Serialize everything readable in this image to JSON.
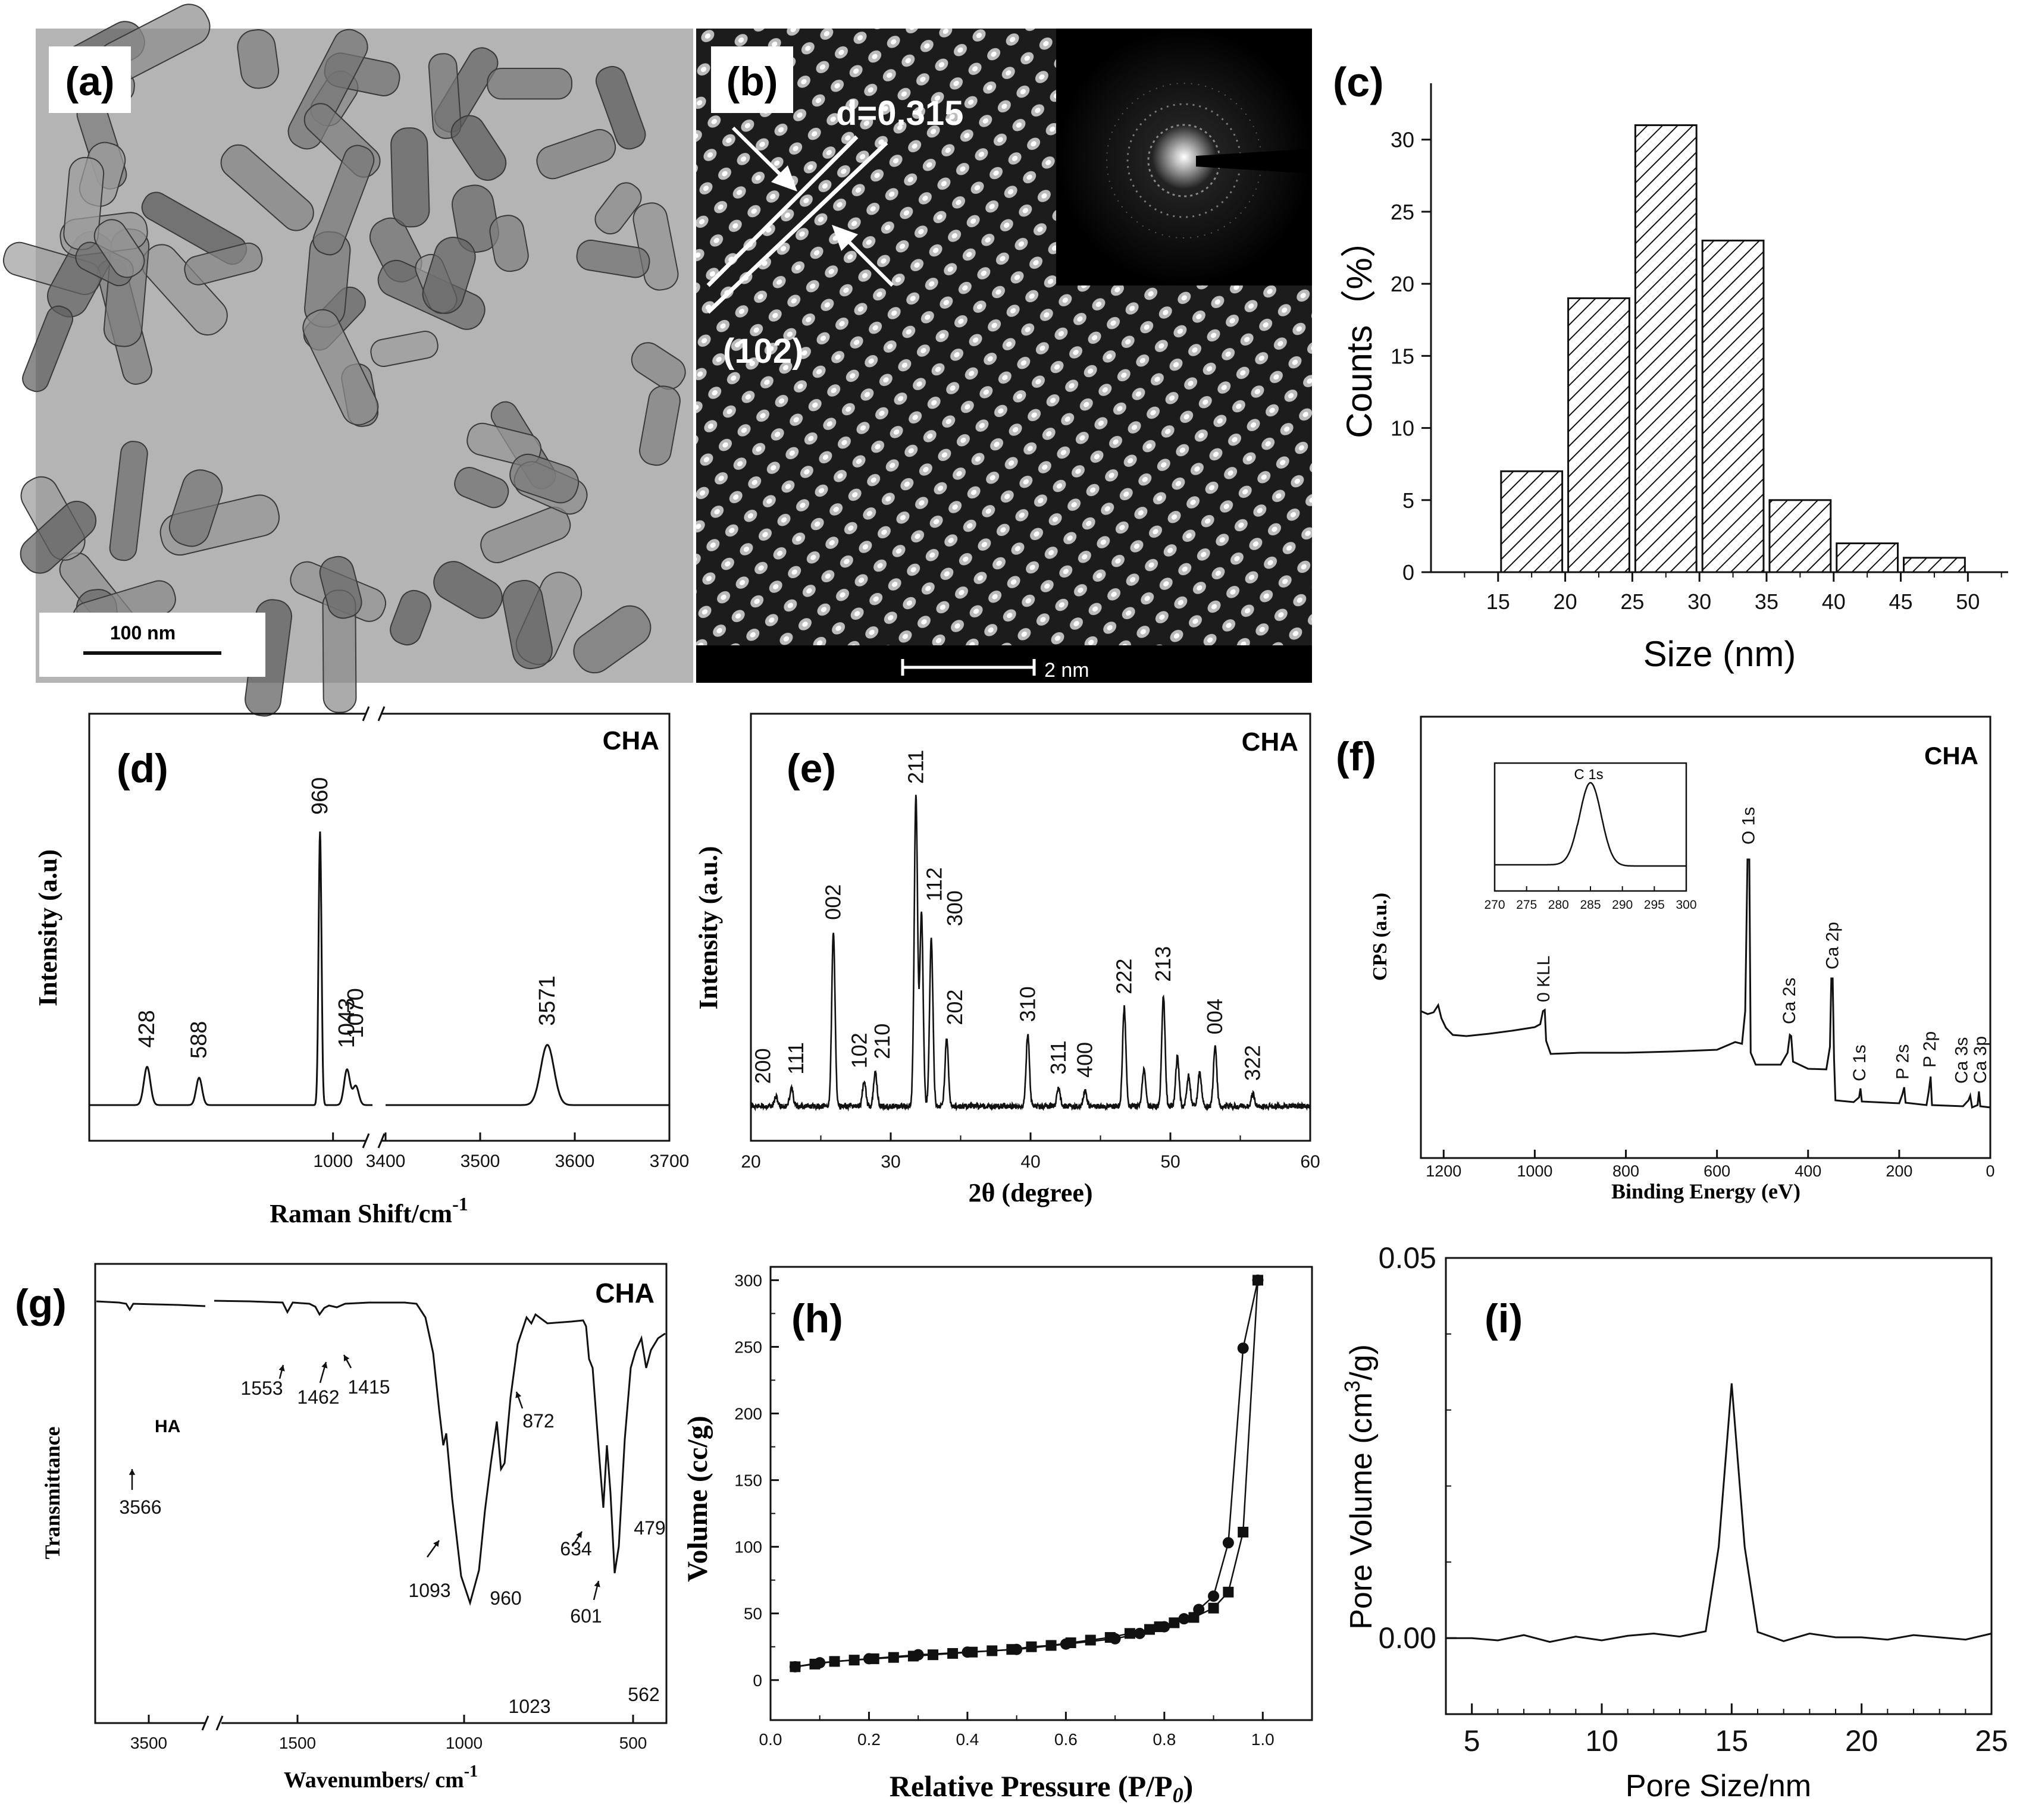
{
  "colors": {
    "ink": "#111111",
    "tem_background": "#b4b4b4",
    "hrtem_background": "#1e1e1e",
    "white": "#ffffff"
  },
  "panel_labels": [
    "(a)",
    "(b)",
    "(c)",
    "(d)",
    "(e)",
    "(f)",
    "(g)",
    "(h)",
    "(i)"
  ],
  "sample_label": "CHA",
  "panel_a": {
    "label": "(a)",
    "scale_bar": "100 nm"
  },
  "panel_b": {
    "label": "(b)",
    "spacing": "d=0.315",
    "plane": "(102)",
    "scale_bar": "2 nm"
  },
  "chart_data": [
    {
      "panel": "c",
      "type": "bar",
      "style": "hatched histogram",
      "bins": [
        [
          15,
          20
        ],
        [
          20,
          25
        ],
        [
          25,
          30
        ],
        [
          30,
          35
        ],
        [
          35,
          40
        ],
        [
          40,
          45
        ],
        [
          45,
          50
        ]
      ],
      "values": [
        7,
        19,
        31,
        23,
        5,
        2,
        1
      ],
      "xlabel": "Size (nm)",
      "ylabel": "Counts（%）",
      "xticks": [
        "15",
        "20",
        "25",
        "30",
        "35",
        "40",
        "45",
        "50"
      ],
      "yticks": [
        "0",
        "5",
        "10",
        "15",
        "20",
        "25",
        "30"
      ],
      "xlim": [
        10,
        53
      ],
      "ylim": [
        0,
        33
      ]
    },
    {
      "panel": "d",
      "type": "line",
      "title": "CHA",
      "xlabel": "Raman Shift/cm",
      "xlabel_superscript": "-1",
      "ylabel": "Intensity (a.u)",
      "broken_axis": true,
      "segments": [
        {
          "xlim": [
            700,
            1125
          ]
        },
        {
          "xlim": [
            3400,
            3700
          ]
        }
      ],
      "xticks": [
        "1000",
        "3400",
        "3500",
        "3600",
        "3700"
      ],
      "peaks": [
        {
          "x": 428,
          "rel": 0.14
        },
        {
          "x": 588,
          "rel": 0.1
        },
        {
          "x": 960,
          "rel": 1.0
        },
        {
          "x": 1043,
          "rel": 0.13
        },
        {
          "x": 1070,
          "rel": 0.07
        },
        {
          "x": 3571,
          "rel": 0.22
        }
      ],
      "peak_labels": [
        "428",
        "588",
        "960",
        "1043",
        "1070",
        "3571"
      ]
    },
    {
      "panel": "e",
      "type": "line",
      "title": "CHA",
      "xlabel": "2θ (degree)",
      "ylabel": "Intensity (a.u.)",
      "xlim": [
        20,
        60
      ],
      "xticks": [
        "20",
        "30",
        "40",
        "50",
        "60"
      ],
      "peaks": [
        {
          "x": 21.8,
          "rel": 0.03,
          "label": "200"
        },
        {
          "x": 22.9,
          "rel": 0.06,
          "label": "111"
        },
        {
          "x": 25.9,
          "rel": 0.56,
          "label": "002"
        },
        {
          "x": 28.1,
          "rel": 0.08,
          "label": "102"
        },
        {
          "x": 28.9,
          "rel": 0.11,
          "label": "210"
        },
        {
          "x": 31.8,
          "rel": 1.0,
          "label": "211"
        },
        {
          "x": 32.2,
          "rel": 0.62,
          "label": "112"
        },
        {
          "x": 32.9,
          "rel": 0.54,
          "label": "300"
        },
        {
          "x": 34.0,
          "rel": 0.22,
          "label": "202"
        },
        {
          "x": 39.8,
          "rel": 0.23,
          "label": "310"
        },
        {
          "x": 42.0,
          "rel": 0.06,
          "label": "311"
        },
        {
          "x": 43.9,
          "rel": 0.05,
          "label": "400"
        },
        {
          "x": 46.7,
          "rel": 0.32,
          "label": "222"
        },
        {
          "x": 48.1,
          "rel": 0.12
        },
        {
          "x": 49.5,
          "rel": 0.36,
          "label": "213"
        },
        {
          "x": 50.5,
          "rel": 0.16
        },
        {
          "x": 51.3,
          "rel": 0.1
        },
        {
          "x": 52.1,
          "rel": 0.11
        },
        {
          "x": 53.2,
          "rel": 0.19,
          "label": "004"
        },
        {
          "x": 55.9,
          "rel": 0.04,
          "label": "322"
        }
      ]
    },
    {
      "panel": "f",
      "type": "line",
      "title": "CHA",
      "xlabel": "Binding Energy (eV)",
      "ylabel": "CPS (a.u.)",
      "xlim": [
        1250,
        0
      ],
      "xticks": [
        "1200",
        "1000",
        "800",
        "600",
        "400",
        "200",
        "0"
      ],
      "peak_labels": [
        {
          "x": 978,
          "label": "0 KLL"
        },
        {
          "x": 531,
          "label": "O 1s"
        },
        {
          "x": 439,
          "label": "Ca 2s"
        },
        {
          "x": 347,
          "label": "Ca 2p"
        },
        {
          "x": 285,
          "label": "C 1s"
        },
        {
          "x": 190,
          "label": "P 2s"
        },
        {
          "x": 133,
          "label": "P 2p"
        },
        {
          "x": 45,
          "label": "Ca 3s"
        },
        {
          "x": 25,
          "label": "Ca 3p"
        }
      ],
      "inset": {
        "title": "C 1s",
        "xlim": [
          270,
          300
        ],
        "xticks": [
          "270",
          "275",
          "280",
          "285",
          "290",
          "295",
          "300"
        ],
        "peak": 285
      }
    },
    {
      "panel": "g",
      "type": "line",
      "title": "CHA",
      "xlabel": "Wavenumbers/ cm",
      "xlabel_superscript": "-1",
      "ylabel": "Transmittance",
      "broken_axis": true,
      "xticks": [
        "3500",
        "1500",
        "1000",
        "500"
      ],
      "series_label": "HA",
      "annotations": [
        "3566",
        "1553",
        "1462",
        "1415",
        "872",
        "1093",
        "960",
        "634",
        "601",
        "479",
        "1023",
        "562"
      ]
    },
    {
      "panel": "h",
      "type": "line",
      "xlabel": "Relative Pressure (P/P",
      "xlabel_sub": "0",
      "ylabel": "Volume (cc/g)",
      "xlim": [
        0,
        1.1
      ],
      "ylim": [
        -30,
        310
      ],
      "xticks": [
        "0.0",
        "0.2",
        "0.4",
        "0.6",
        "0.8",
        "1.0"
      ],
      "yticks": [
        "0",
        "50",
        "100",
        "150",
        "200",
        "250",
        "300"
      ],
      "series": [
        {
          "name": "",
          "marker": "square",
          "x": [
            0.05,
            0.09,
            0.13,
            0.17,
            0.21,
            0.25,
            0.29,
            0.33,
            0.37,
            0.41,
            0.45,
            0.49,
            0.53,
            0.57,
            0.61,
            0.65,
            0.69,
            0.73,
            0.77,
            0.79,
            0.82,
            0.86,
            0.9,
            0.93,
            0.96,
            0.99
          ],
          "y": [
            10,
            12,
            14,
            15,
            16,
            17,
            18,
            19,
            20,
            21,
            22,
            23,
            25,
            26,
            28,
            30,
            32,
            35,
            38,
            40,
            43,
            47,
            54,
            66,
            111,
            300
          ]
        },
        {
          "name": "",
          "marker": "circle",
          "x": [
            0.99,
            0.96,
            0.93,
            0.9,
            0.87,
            0.84,
            0.8,
            0.75,
            0.7,
            0.6,
            0.5,
            0.4,
            0.3,
            0.2,
            0.1,
            0.05
          ],
          "y": [
            300,
            249,
            103,
            63,
            53,
            46,
            40,
            35,
            31,
            27,
            23,
            21,
            19,
            16,
            13,
            10
          ]
        }
      ]
    },
    {
      "panel": "i",
      "type": "line",
      "xlabel": "Pore Size/nm",
      "ylabel": "Pore Volume (cm",
      "ylabel_sup": "3",
      "ylabel_end": "/g)",
      "xlim": [
        4,
        25
      ],
      "ylim": [
        -0.01,
        0.05
      ],
      "xticks": [
        "5",
        "10",
        "15",
        "20",
        "25"
      ],
      "yticks": [
        "0.00",
        "0.05"
      ],
      "series": [
        {
          "name": "",
          "x": [
            4,
            5,
            6,
            7,
            8,
            9,
            10,
            11,
            12,
            13,
            14,
            14.5,
            15,
            15.5,
            16,
            17,
            18,
            19,
            20,
            21,
            22,
            23,
            24,
            25
          ],
          "y": [
            0,
            0,
            -0.0003,
            0.0004,
            -0.0005,
            0.0002,
            -0.0003,
            0.0003,
            0.0006,
            0.0002,
            0.0009,
            0.012,
            0.0335,
            0.012,
            0.0008,
            -0.0004,
            0.0006,
            0.0001,
            0.0001,
            -0.0002,
            0.0004,
            0.0001,
            -0.0002,
            0.0006
          ]
        }
      ]
    }
  ]
}
